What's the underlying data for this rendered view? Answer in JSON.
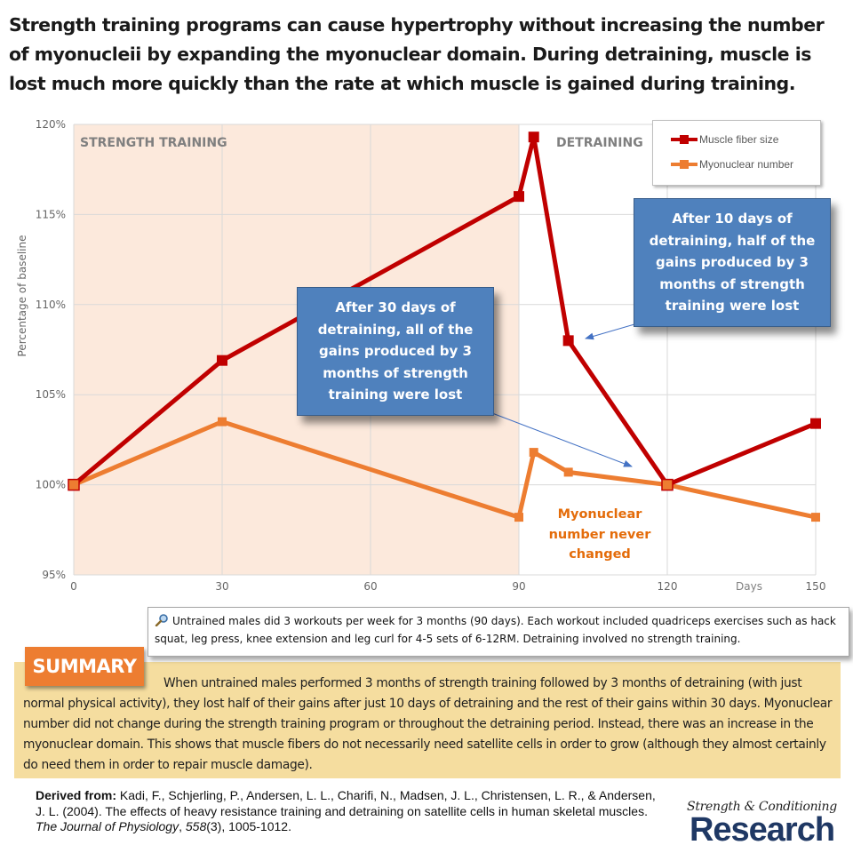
{
  "headline": "Strength training programs can cause hypertrophy without increasing the number of myonucleii by expanding the myonuclear domain. During detraining, muscle is lost much more quickly than the rate at which muscle is gained during training.",
  "colors": {
    "muscle_fiber": "#c00000",
    "myonuclear": "#ed7d31",
    "training_shade": "#fce9dc",
    "callout": "#4f81bd",
    "summary_bg": "#f5dd9f",
    "summary_badge": "#ed7d31",
    "logo": "#1f3864"
  },
  "chart_data": {
    "type": "line",
    "title": "",
    "xlabel": "Days",
    "ylabel": "Percentage of baseline",
    "xlim": [
      0,
      150
    ],
    "ylim": [
      95,
      120
    ],
    "x_ticks": [
      "0",
      "30",
      "60",
      "90",
      "120",
      "150"
    ],
    "x_tick_values": [
      0,
      30,
      60,
      90,
      120,
      150
    ],
    "y_ticks": [
      "95%",
      "100%",
      "105%",
      "110%",
      "115%",
      "120%"
    ],
    "y_tick_values": [
      95,
      100,
      105,
      110,
      115,
      120
    ],
    "grid": true,
    "legend_position": "top-right",
    "shaded_region": {
      "label": "STRENGTH TRAINING",
      "x_range": [
        0,
        90
      ]
    },
    "region_labels": [
      "STRENGTH TRAINING",
      "DETRAINING"
    ],
    "series": [
      {
        "name": "Muscle fiber size",
        "x": [
          0,
          30,
          90,
          93,
          100,
          120,
          150
        ],
        "values": [
          100,
          106.9,
          116.0,
          119.3,
          108.0,
          100,
          103.4
        ]
      },
      {
        "name": "Myonuclear number",
        "x": [
          0,
          30,
          90,
          93,
          100,
          120,
          150
        ],
        "values": [
          100,
          103.5,
          98.2,
          101.8,
          100.7,
          100,
          98.2
        ]
      }
    ],
    "annotations": {
      "callout_30": "After 30 days of detraining, all of the gains produced by 3 months of strength training were lost",
      "callout_10": "After 10 days of detraining, half of the gains produced by 3 months of strength training were lost",
      "myonuclear_note": "Myonuclear number never changed"
    }
  },
  "callouts": {
    "callout_30_lines": [
      "After 30 days of",
      "detraining, all of the",
      "gains produced by 3",
      "months of strength",
      "training were lost"
    ],
    "callout_10_lines": [
      "After 10 days of",
      "detraining, half of the",
      "gains produced by 3",
      "months of strength",
      "training were lost"
    ],
    "note_lines": [
      "Myonuclear",
      "number never",
      "changed"
    ]
  },
  "info": {
    "icon": "magnifier-icon",
    "text": "Untrained males did 3 workouts per week for 3 months (90 days). Each workout included quadriceps exercises such as hack squat, leg press, knee extension and leg curl for 4-5 sets of 6-12RM. Detraining involved no strength training."
  },
  "summary": {
    "badge": "SUMMARY",
    "text": "When untrained males performed 3 months of strength training followed by 3 months of detraining (with just normal physical activity), they lost half of their gains after just 10 days of detraining and the rest of their gains within 30 days. Myonuclear number did not change during the strength training program or throughout the detraining period. Instead, there was an increase in the myonuclear domain. This shows that muscle fibers do not necessarily need satellite cells in order to grow (although they almost certainly do need them in order to repair muscle damage)."
  },
  "citation": {
    "label": "Derived from:",
    "pre": " Kadi, F., Schjerling, P., Andersen, L. L., Charifi, N., Madsen, J. L., Christensen, L. R., & Andersen, J. L. (2004). The effects of heavy resistance training and detraining on satellite cells in human skeletal muscles. ",
    "journal": "The Journal of Physiology",
    "sep": ", ",
    "volume": "558",
    "post": "(3), 1005-1012."
  },
  "logo": {
    "script": "Strength & Conditioning",
    "big": "Research"
  }
}
